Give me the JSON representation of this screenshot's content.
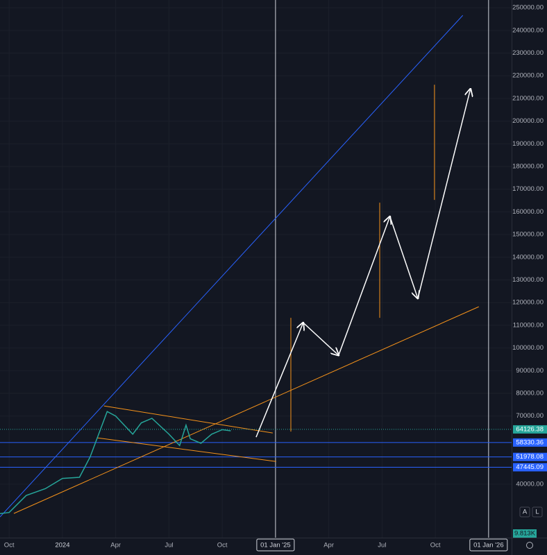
{
  "chart_data": {
    "type": "line",
    "x": [
      2023.707,
      2023.75,
      2023.83,
      2023.92,
      2024.0,
      2024.08,
      2024.13,
      2024.17,
      2024.21,
      2024.25,
      2024.33,
      2024.37,
      2024.42,
      2024.5,
      2024.55,
      2024.58,
      2024.6,
      2024.65,
      2024.7,
      2024.75,
      2024.79
    ],
    "values": [
      27000,
      27500,
      35000,
      38000,
      42500,
      43000,
      52000,
      62000,
      72000,
      70000,
      62000,
      67000,
      69000,
      62000,
      57000,
      66000,
      60000,
      58000,
      62000,
      64000,
      63500
    ],
    "color": "#26a69a",
    "xlim": [
      2023.707,
      2026.108
    ],
    "ylim": [
      16400,
      253400
    ],
    "xticks": [
      {
        "value": 2023.75,
        "label": "Oct"
      },
      2024,
      {
        "value": 2024.25,
        "label": "Apr"
      },
      {
        "value": 2024.5,
        "label": "Jul"
      },
      {
        "value": 2024.75,
        "label": "Oct"
      },
      {
        "value": 2025,
        "label": "01 Jan '25"
      },
      {
        "value": 2025.25,
        "label": "Apr"
      },
      {
        "value": 2025.5,
        "label": "Jul"
      },
      {
        "value": 2025.75,
        "label": "Oct"
      },
      {
        "value": 2026,
        "label": "01 Jan '26"
      }
    ],
    "yticks": [
      {
        "value": 40000,
        "label": "40000.00"
      },
      {
        "value": 70000,
        "label": "70000.00"
      },
      {
        "value": 80000,
        "label": "80000.00"
      },
      {
        "value": 90000,
        "label": "90000.00"
      },
      {
        "value": 100000,
        "label": "100000.00"
      },
      {
        "value": 110000,
        "label": "110000.00"
      },
      {
        "value": 120000,
        "label": "120000.00"
      },
      {
        "value": 130000,
        "label": "130000.00"
      },
      {
        "value": 140000,
        "label": "140000.00"
      },
      {
        "value": 150000,
        "label": "150000.00"
      },
      {
        "value": 160000,
        "label": "160000.00"
      },
      {
        "value": 170000,
        "label": "170000.00"
      },
      {
        "value": 180000,
        "label": "180000.00"
      },
      {
        "value": 190000,
        "label": "190000.00"
      },
      {
        "value": 200000,
        "label": "200000.00"
      },
      {
        "value": 210000,
        "label": "210000.00"
      },
      {
        "value": 220000,
        "label": "220000.00"
      },
      {
        "value": 230000,
        "label": "230000.00"
      },
      {
        "value": 240000,
        "label": "240000.00"
      },
      {
        "value": 250000,
        "label": "250000.00"
      }
    ],
    "grid": true,
    "last_price": 64126.38,
    "levels": [
      58330.36,
      51978.08,
      47445.09
    ],
    "level_color": "#2962ff",
    "trend_lines": [
      {
        "color": "#2962ff",
        "x": [
          2023.707,
          2025.879
        ],
        "y": [
          25535,
          246636
        ]
      },
      {
        "color": "#f7931a",
        "x": [
          2023.772,
          2025.954
        ],
        "y": [
          27064,
          118196
        ]
      },
      {
        "color": "#f7931a",
        "x": [
          2024.195,
          2024.987
        ],
        "y": [
          74465,
          62538
        ]
      },
      {
        "color": "#f7931a",
        "x": [
          2024.163,
          2025.003
        ],
        "y": [
          60398,
          49969
        ]
      },
      {
        "color": "#f7931a",
        "x": [
          2025.072,
          2025.072
        ],
        "y": [
          113303,
          63150
        ]
      },
      {
        "color": "#f7931a",
        "x": [
          2025.489,
          2025.489
        ],
        "y": [
          164067,
          113303
        ]
      },
      {
        "color": "#f7931a",
        "x": [
          2025.746,
          2025.746
        ],
        "y": [
          216055,
          165290
        ]
      }
    ],
    "projection": {
      "color": "#ffffff",
      "x": [
        2024.909,
        2025.13,
        2025.296,
        2025.537,
        2025.668,
        2025.915
      ],
      "y": [
        60703,
        111162,
        96789,
        157951,
        121865,
        214220
      ]
    },
    "volume_label": "9.813K",
    "buttons": [
      "A",
      "L"
    ]
  }
}
